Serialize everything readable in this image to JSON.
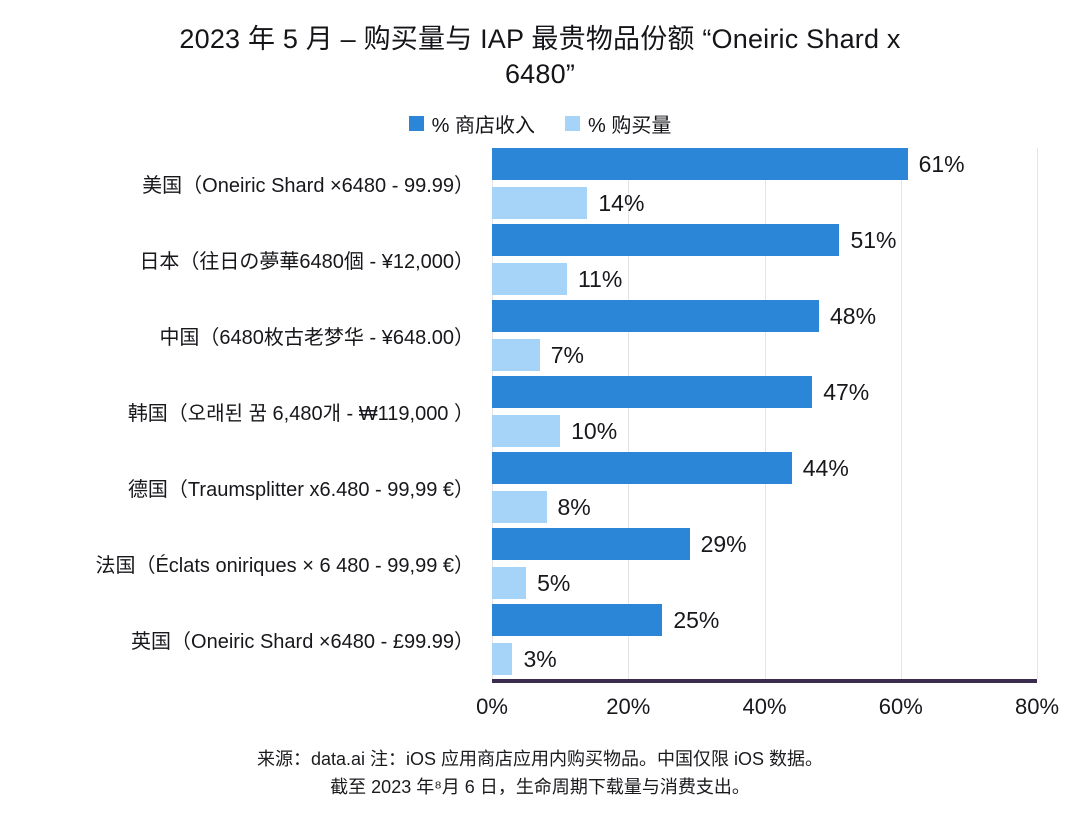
{
  "title": "2023 年 5 月 – 购买量与 IAP 最贵物品份额 “Oneiric Shard x 6480”",
  "legend": [
    {
      "label": "% 商店收入",
      "color": "#2b86d8"
    },
    {
      "label": "% 购买量",
      "color": "#a6d3f8"
    }
  ],
  "chart_data": {
    "type": "bar",
    "orientation": "horizontal",
    "title": "2023 年 5 月 – 购买量与 IAP 最贵物品份额 “Oneiric Shard x 6480”",
    "categories": [
      "美国（Oneiric Shard ×6480 - 99.99）",
      "日本（往日の夢華6480個 - ¥12,000）",
      "中国（6480枚古老梦华 - ¥648.00）",
      "韩国（오래된 꿈 6,480개 - ₩119,000 ）",
      "德国（Traumsplitter x6.480 - 99,99 €）",
      "法国（Éclats oniriques × 6 480 - 99,99 €）",
      "英国（Oneiric Shard ×6480 - £99.99）"
    ],
    "series": [
      {
        "name": "% 商店收入",
        "color": "#2b86d8",
        "values": [
          61,
          51,
          48,
          47,
          44,
          29,
          25
        ]
      },
      {
        "name": "% 购买量",
        "color": "#a6d3f8",
        "values": [
          14,
          11,
          7,
          10,
          8,
          5,
          3
        ]
      }
    ],
    "value_suffix": "%",
    "xlim": [
      0,
      80
    ],
    "x_ticks": [
      "0%",
      "20%",
      "40%",
      "60%",
      "80%"
    ],
    "grid": true,
    "legend_position": "top",
    "axis_line_color": "#3a2c4e",
    "grid_color": "#e4e4e6"
  },
  "footer": {
    "line1": "来源：data.ai 注：iOS 应用商店应用内购买物品。中国仅限 iOS 数据。",
    "line2": "截至 2023 年⁸月 6 日，生命周期下载量与消费支出。"
  }
}
